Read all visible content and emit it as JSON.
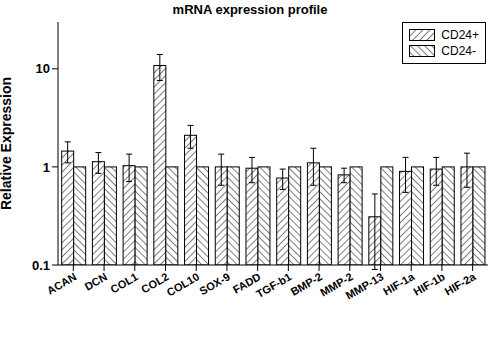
{
  "chart_data": {
    "type": "bar",
    "title": "mRNA expression profile",
    "y_label": "Relative Expression",
    "categories": [
      "ACAN",
      "DCN",
      "COL1",
      "COL2",
      "COL10",
      "SOX-9",
      "FADD",
      "TGF-b1",
      "BMP-2",
      "MMP-2",
      "MMP-13",
      "HIF-1a",
      "HIF-1b",
      "HIF-2a"
    ],
    "series": [
      {
        "name": "CD24+",
        "color": "#000000",
        "values": [
          1.45,
          1.13,
          1.03,
          10.8,
          2.1,
          1.0,
          0.97,
          0.77,
          1.1,
          0.83,
          0.31,
          0.9,
          0.95,
          1.0
        ],
        "errors": [
          0.35,
          0.27,
          0.32,
          3.2,
          0.55,
          0.35,
          0.28,
          0.18,
          0.45,
          0.14,
          0.22,
          0.35,
          0.3,
          0.38
        ]
      },
      {
        "name": "CD24-",
        "color": "#000000",
        "values": [
          1,
          1,
          1,
          1,
          1,
          1,
          1,
          1,
          1,
          1,
          1,
          1,
          1,
          1
        ]
      }
    ],
    "ylim": [
      0.1,
      30
    ],
    "yticks": [
      0.1,
      1,
      10
    ],
    "log": "y",
    "legend": "upper right",
    "grid": false
  }
}
